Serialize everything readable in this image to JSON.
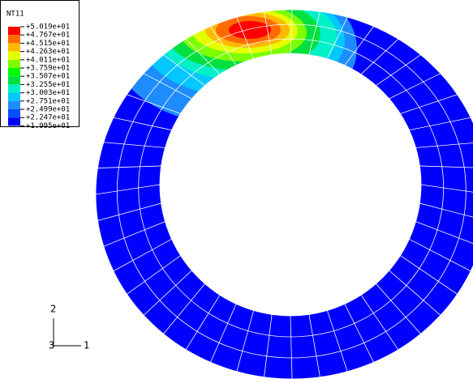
{
  "legend": {
    "title": "NT11",
    "labels": [
      "+5.019e+01",
      "+4.767e+01",
      "+4.515e+01",
      "+4.263e+01",
      "+4.011e+01",
      "+3.759e+01",
      "+3.507e+01",
      "+3.255e+01",
      "+3.003e+01",
      "+2.751e+01",
      "+2.499e+01",
      "+2.247e+01",
      "+1.995e+01"
    ]
  },
  "triad": {
    "axis_2": "2",
    "axis_1": "1",
    "axis_3": "3"
  }
}
